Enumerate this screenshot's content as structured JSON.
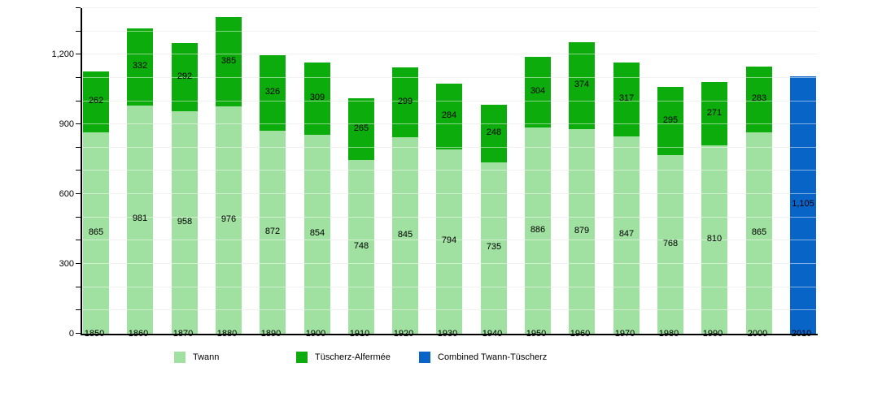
{
  "chart_data": {
    "type": "bar",
    "stacked": true,
    "title": "",
    "xlabel": "",
    "ylabel": "",
    "categories": [
      "1850",
      "1860",
      "1870",
      "1880",
      "1890",
      "1900",
      "1910",
      "1920",
      "1930",
      "1940",
      "1950",
      "1960",
      "1970",
      "1980",
      "1990",
      "2000",
      "2010"
    ],
    "series": [
      {
        "name": "Twann",
        "color": "#a0e0a0",
        "values": [
          865,
          981,
          958,
          976,
          872,
          854,
          748,
          845,
          794,
          735,
          886,
          879,
          847,
          768,
          810,
          865,
          null
        ]
      },
      {
        "name": "Tüscherz-Alfermée",
        "color": "#0cac0c",
        "values": [
          262,
          332,
          292,
          385,
          326,
          309,
          265,
          299,
          284,
          248,
          304,
          374,
          317,
          295,
          271,
          283,
          null
        ]
      },
      {
        "name": "Combined Twann-Tüscherz",
        "color": "#0964c8",
        "values": [
          null,
          null,
          null,
          null,
          null,
          null,
          null,
          null,
          null,
          null,
          null,
          null,
          null,
          null,
          null,
          null,
          1105
        ]
      }
    ],
    "ylim": [
      0,
      1400
    ],
    "yticks": [
      0,
      300,
      600,
      900,
      1200
    ],
    "minor_grid_step": 100,
    "grid": true,
    "bar_value_labels": true,
    "legend_position": "bottom"
  }
}
